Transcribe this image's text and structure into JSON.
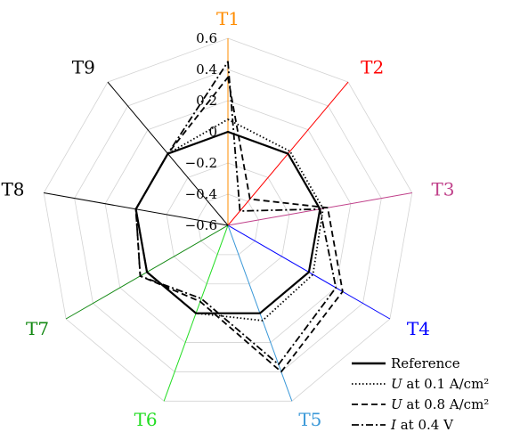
{
  "chart_data": {
    "type": "radar",
    "axes": [
      {
        "label": "T1",
        "color": "#ff8c00"
      },
      {
        "label": "T2",
        "color": "#ff0000"
      },
      {
        "label": "T3",
        "color": "#c0408a"
      },
      {
        "label": "T4",
        "color": "#0000ff"
      },
      {
        "label": "T5",
        "color": "#3a98d8"
      },
      {
        "label": "T6",
        "color": "#22dd22"
      },
      {
        "label": "T7",
        "color": "#118811"
      },
      {
        "label": "T8",
        "color": "#000000"
      },
      {
        "label": "T9",
        "color": "#000000"
      }
    ],
    "rlim": [
      -0.6,
      0.6
    ],
    "ticks": [
      "0.6",
      "0.4",
      "0.2",
      "0",
      "−0.2",
      "−0.4",
      "−0.6"
    ],
    "tick_values": [
      0.6,
      0.4,
      0.2,
      0,
      -0.2,
      -0.4,
      -0.6
    ],
    "grid": true,
    "legend_position": "bottom-right",
    "series": [
      {
        "name": "Reference",
        "style": "solid",
        "values": [
          0,
          0,
          0,
          0,
          0,
          0,
          0,
          0,
          0
        ]
      },
      {
        "name": "U at 0.1 A/cm²",
        "style": "dotted",
        "values": [
          0.08,
          0.02,
          0.02,
          0.03,
          0.05,
          0.0,
          0.0,
          0.0,
          0.0
        ]
      },
      {
        "name": "U at 0.8 A/cm²",
        "style": "dashed",
        "values": [
          0.35,
          -0.38,
          0.05,
          0.25,
          0.4,
          -0.08,
          0.05,
          0.0,
          0.0
        ]
      },
      {
        "name": "I at 0.4 V",
        "style": "dashdot",
        "values": [
          0.45,
          -0.48,
          0.0,
          0.2,
          0.35,
          -0.1,
          0.05,
          0.0,
          0.0
        ]
      }
    ],
    "legend": [
      {
        "var": "",
        "text": "Reference"
      },
      {
        "var": "U",
        "text": " at 0.1 A/cm²"
      },
      {
        "var": "U",
        "text": " at 0.8 A/cm²"
      },
      {
        "var": "I",
        "text": " at 0.4 V"
      }
    ]
  }
}
